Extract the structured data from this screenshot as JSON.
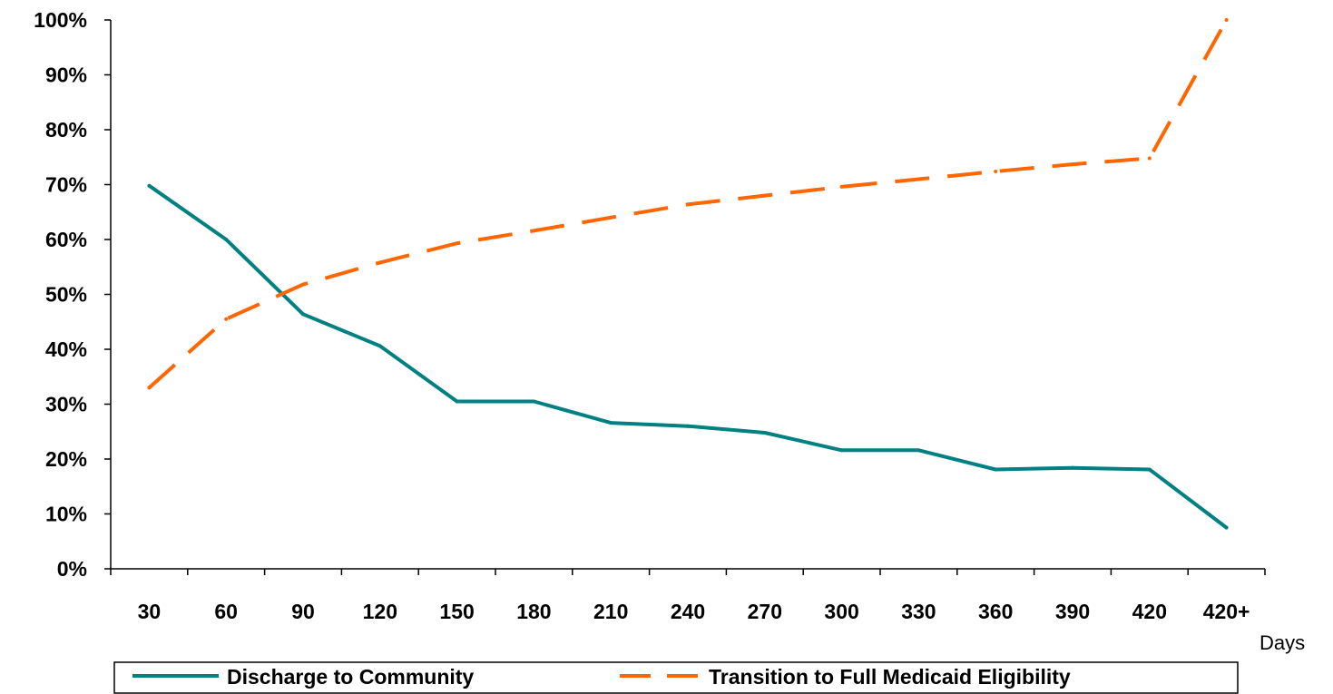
{
  "chart_data": {
    "type": "line",
    "title": "",
    "xlabel": "Days",
    "ylabel": "",
    "categories": [
      "30",
      "60",
      "90",
      "120",
      "150",
      "180",
      "210",
      "240",
      "270",
      "300",
      "330",
      "360",
      "390",
      "420",
      "420+"
    ],
    "yticks": [
      "0%",
      "10%",
      "20%",
      "30%",
      "40%",
      "50%",
      "60%",
      "70%",
      "80%",
      "90%",
      "100%"
    ],
    "ylim": [
      0,
      100
    ],
    "grid": false,
    "legend_position": "bottom",
    "series": [
      {
        "name": "Discharge to Community",
        "color": "#008080",
        "style": "solid",
        "values": [
          69.8,
          60.0,
          46.4,
          40.6,
          30.5,
          30.5,
          26.6,
          26.0,
          24.8,
          21.6,
          21.6,
          18.1,
          18.4,
          18.1,
          7.5
        ]
      },
      {
        "name": "Transition to Full Medicaid Eligibility",
        "color": "#FF6600",
        "style": "dashed",
        "values": [
          33.0,
          45.5,
          51.8,
          55.8,
          59.3,
          61.6,
          64.0,
          66.4,
          68.0,
          69.6,
          71.0,
          72.4,
          73.7,
          74.8,
          100.0
        ]
      }
    ]
  }
}
